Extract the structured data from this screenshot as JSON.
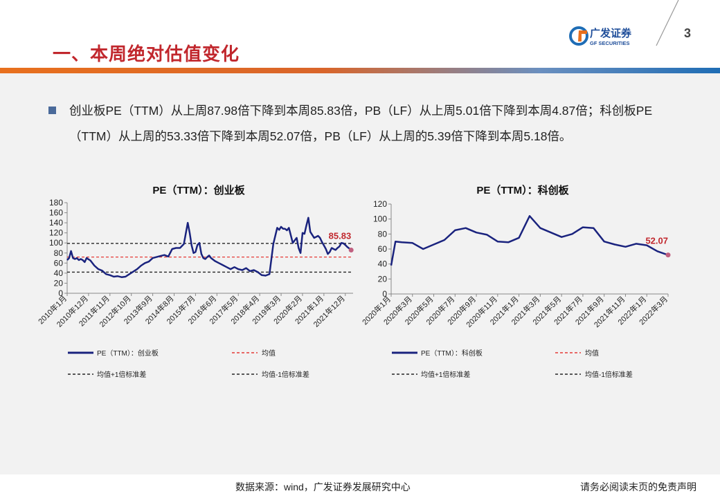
{
  "header": {
    "title": "一、本周绝对估值变化",
    "page_number": "3",
    "logo_name": "广发证券",
    "logo_sub": "GF SECURITIES"
  },
  "summary": {
    "text": "创业板PE（TTM）从上周87.98倍下降到本周85.83倍，PB（LF）从上周5.01倍下降到本周4.87倍；科创板PE（TTM）从上周的53.33倍下降到本周52.07倍，PB（LF）从上周的5.39倍下降到本周5.18倍。"
  },
  "colors": {
    "accent_red": "#c1272d",
    "series_blue": "#1a237e",
    "mean_red": "#e53935",
    "band_black": "#222222"
  },
  "chart_data": [
    {
      "type": "line",
      "title": "PE（TTM）：创业板",
      "ylim": [
        0,
        180
      ],
      "yticks": [
        0,
        20,
        40,
        60,
        80,
        100,
        120,
        140,
        160,
        180
      ],
      "x_range": [
        0,
        147
      ],
      "xtick_labels": [
        "2010年1月",
        "2010年12月",
        "2011年11月",
        "2012年10月",
        "2013年9月",
        "2014年8月",
        "2015年7月",
        "2016年6月",
        "2017年5月",
        "2018年4月",
        "2019年3月",
        "2020年2月",
        "2021年1月",
        "2021年12月"
      ],
      "xtick_positions": [
        0,
        11,
        22,
        33,
        44,
        55,
        66,
        77,
        88,
        99,
        110,
        121,
        132,
        143
      ],
      "series": [
        {
          "name": "PE（TTM）：创业板",
          "x": [
            0,
            1,
            2,
            3,
            4,
            5,
            6,
            7,
            8,
            9,
            10,
            12,
            14,
            16,
            18,
            20,
            22,
            24,
            26,
            28,
            30,
            32,
            34,
            36,
            38,
            40,
            42,
            44,
            46,
            48,
            50,
            52,
            54,
            56,
            58,
            60,
            62,
            63,
            64,
            65,
            66,
            67,
            68,
            69,
            70,
            71,
            72,
            73,
            74,
            76,
            78,
            80,
            82,
            84,
            86,
            88,
            90,
            92,
            94,
            96,
            98,
            100,
            102,
            104,
            106,
            108,
            109,
            110,
            111,
            112,
            113,
            114,
            116,
            118,
            119,
            120,
            121,
            122,
            123,
            124,
            125,
            126,
            127,
            128,
            129,
            130,
            131,
            132,
            133,
            134,
            135,
            136,
            137,
            138,
            139,
            140,
            141,
            142,
            143,
            144,
            145,
            146
          ],
          "values": [
            66,
            70,
            84,
            70,
            68,
            70,
            66,
            68,
            66,
            62,
            70,
            65,
            55,
            48,
            45,
            38,
            36,
            33,
            34,
            32,
            33,
            38,
            43,
            48,
            55,
            60,
            63,
            70,
            72,
            74,
            76,
            73,
            88,
            90,
            90,
            98,
            140,
            120,
            95,
            80,
            82,
            96,
            100,
            78,
            70,
            68,
            72,
            75,
            70,
            64,
            60,
            56,
            52,
            48,
            52,
            48,
            46,
            50,
            44,
            46,
            42,
            36,
            35,
            38,
            98,
            130,
            126,
            132,
            128,
            128,
            125,
            130,
            100,
            110,
            90,
            80,
            120,
            118,
            135,
            150,
            122,
            116,
            110,
            112,
            114,
            110,
            102,
            95,
            88,
            78,
            82,
            90,
            88,
            86,
            90,
            93,
            100,
            99,
            96,
            92,
            89,
            86
          ]
        },
        {
          "name": "均值",
          "values": [
            72
          ]
        },
        {
          "name": "均值+1倍标准差",
          "values": [
            99
          ]
        },
        {
          "name": "均值-1倍标准差",
          "values": [
            42
          ]
        }
      ],
      "annotation": {
        "label": "85.83",
        "x": 146,
        "y": 85.83
      }
    },
    {
      "type": "line",
      "title": "PE（TTM）：科创板",
      "ylim": [
        0,
        120
      ],
      "yticks": [
        0,
        20,
        40,
        60,
        80,
        100,
        120
      ],
      "x_range": [
        0,
        26
      ],
      "xtick_labels": [
        "2020年1月",
        "2020年3月",
        "2020年5月",
        "2020年7月",
        "2020年9月",
        "2020年11月",
        "2021年1月",
        "2021年3月",
        "2021年5月",
        "2021年7月",
        "2021年9月",
        "2021年11月",
        "2022年1月",
        "2022年3月"
      ],
      "xtick_positions": [
        0,
        2,
        4,
        6,
        8,
        10,
        12,
        14,
        16,
        18,
        20,
        22,
        24,
        26
      ],
      "series": [
        {
          "name": "PE（TTM）：科创板",
          "x": [
            0,
            0.4,
            1,
            2,
            3,
            4,
            5,
            6,
            7,
            8,
            9,
            10,
            11,
            12,
            13,
            14,
            15,
            16,
            17,
            18,
            19,
            20,
            21,
            22,
            23,
            24,
            25,
            26
          ],
          "values": [
            38,
            70,
            69,
            68,
            60,
            66,
            72,
            85,
            88,
            82,
            79,
            70,
            69,
            75,
            104,
            88,
            82,
            76,
            80,
            89,
            88,
            70,
            66,
            63,
            67,
            65,
            57,
            52
          ]
        },
        {
          "name": "均值",
          "values": []
        },
        {
          "name": "均值+1倍标准差",
          "values": []
        },
        {
          "name": "均值-1倍标准差",
          "values": []
        }
      ],
      "annotation": {
        "label": "52.07",
        "x": 26,
        "y": 52.07
      }
    }
  ],
  "legend": {
    "left": {
      "series": "PE（TTM）：创业板",
      "mean": "均值",
      "plus": "均值+1倍标准差",
      "minus": "均值-1倍标准差"
    },
    "right": {
      "series": "PE（TTM）：科创板",
      "mean": "均值",
      "plus": "均值+1倍标准差",
      "minus": "均值-1倍标准差"
    }
  },
  "footer": {
    "source": "数据来源：wind，广发证券发展研究中心",
    "disclaimer": "请务必阅读末页的免责声明"
  }
}
